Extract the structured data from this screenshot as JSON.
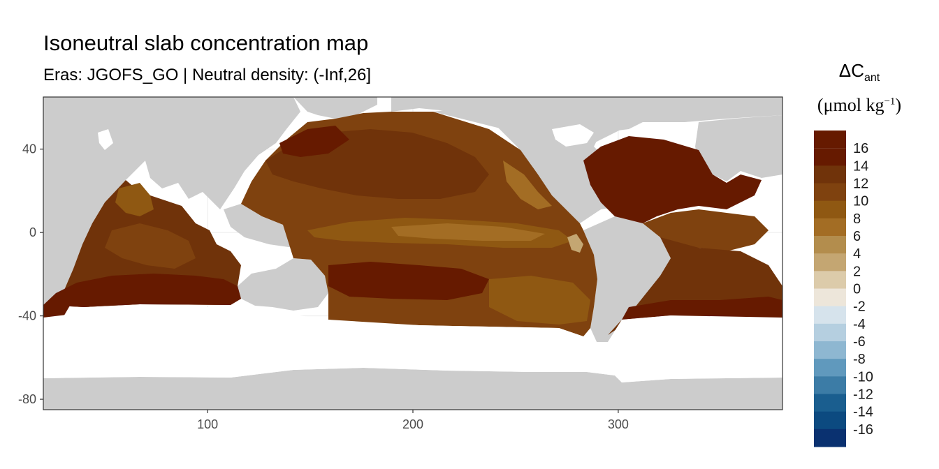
{
  "title": "Isoneutral slab concentration map",
  "subtitle": "Eras: JGOFS_GO | Neutral density: (-Inf,26]",
  "map": {
    "projection": "longitude-latitude",
    "x_ticks": [
      {
        "value": 100,
        "label": "100"
      },
      {
        "value": 200,
        "label": "200"
      },
      {
        "value": 300,
        "label": "300"
      }
    ],
    "y_ticks": [
      {
        "value": 40,
        "label": "40"
      },
      {
        "value": 0,
        "label": "0"
      },
      {
        "value": -40,
        "label": "-40"
      },
      {
        "value": -80,
        "label": "-80"
      }
    ],
    "xlim": [
      20,
      380
    ],
    "ylim": [
      -85,
      65
    ],
    "land_color": "#cccccc",
    "panel_background": "#ffffff",
    "grid_color": "#ebebeb"
  },
  "legend": {
    "title_main": "ΔC",
    "title_sub": "ant",
    "unit_prefix": "(μmol kg",
    "unit_exponent": "−1",
    "unit_suffix": ")",
    "bins": [
      {
        "label": "16",
        "color": "#661a00"
      },
      {
        "label": "14",
        "color": "#70330a"
      },
      {
        "label": "12",
        "color": "#7f420f"
      },
      {
        "label": "10",
        "color": "#8f5812"
      },
      {
        "label": "8",
        "color": "#a36d24"
      },
      {
        "label": "6",
        "color": "#b38d4d"
      },
      {
        "label": "4",
        "color": "#c4a672"
      },
      {
        "label": "2",
        "color": "#dccbaa"
      },
      {
        "label": "0",
        "color": "#ede6da"
      },
      {
        "label": "-2",
        "color": "#d6e3ec"
      },
      {
        "label": "-4",
        "color": "#b5cfe0"
      },
      {
        "label": "-6",
        "color": "#8eb7d1"
      },
      {
        "label": "-8",
        "color": "#6099bd"
      },
      {
        "label": "-10",
        "color": "#3c7ca6"
      },
      {
        "label": "-12",
        "color": "#1a5e8f"
      },
      {
        "label": "-14",
        "color": "#0c4a80"
      },
      {
        "label": "-16",
        "color": "#0a3170"
      }
    ]
  }
}
